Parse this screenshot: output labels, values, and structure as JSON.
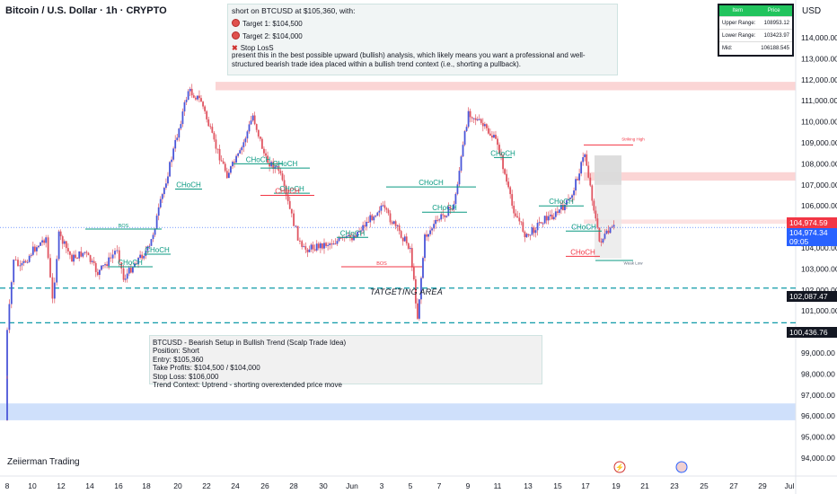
{
  "header": {
    "title": "Bitcoin / U.S. Dollar · 1h · CRYPTO",
    "currency": "USD"
  },
  "note_top": {
    "line1": "short on BTCUSD at $105,360, with:",
    "target1": "Target 1: $104,500",
    "target2": "Target 2: $104,000",
    "stoploss": "Stop LosS",
    "paragraph": " present this in the best possible upward (bullish) analysis, which likely means you want a professional and well-structured bearish trade idea placed within a bullish trend context (i.e., shorting a pullback)."
  },
  "note_bottom": {
    "lines": [
      "BTCUSD - Bearish Setup in Bullish Trend (Scalp Trade Idea)",
      "Position: Short",
      "Entry: $105,360",
      "Take Profits: $104,500 / $104,000",
      "Stop Loss: $106,000",
      "Trend Context: Uptrend - shorting overextended price move"
    ]
  },
  "range_table": {
    "header": [
      "Item",
      "Price"
    ],
    "rows": [
      {
        "label": "Upper Range:",
        "value": "108953.12"
      },
      {
        "label": "Lower Range:",
        "value": "103423.97"
      },
      {
        "label": "Mid:",
        "value": "106188.545"
      }
    ]
  },
  "price_labels": {
    "current": "104,974.59",
    "last": "104,974.34",
    "countdown": "09:05",
    "level1": "102,087.47",
    "level2": "100,436.76"
  },
  "watermark": "Zeiierman Trading",
  "targeting_area": "TATGETING AREA",
  "colors": {
    "up": "#26a69a",
    "down": "#ef5350",
    "candle_body": "#4a56d8",
    "wick": "#e05561",
    "teal": "#089981",
    "red_label": "#f23645",
    "dash": "#0f9aa8",
    "blue_zone": "#cfe0fb",
    "red_zone": "#fbd5d5"
  },
  "structure_labels": {
    "choch": "CHoCH",
    "bos": "BOS",
    "striking_high": "Striking High",
    "weak_low": "Weak Low"
  },
  "chart_data": {
    "type": "candlestick",
    "symbol": "BTCUSD",
    "interval": "1h",
    "ylim": [
      94000,
      115000
    ],
    "y_ticks": [
      "94,000.00",
      "95,000.00",
      "96,000.00",
      "97,000.00",
      "98,000.00",
      "99,000.00",
      "100,000.00",
      "101,000.00",
      "102,000.00",
      "103,000.00",
      "104,000.00",
      "105,000.00",
      "106,000.00",
      "107,000.00",
      "108,000.00",
      "109,000.00",
      "110,000.00",
      "111,000.00",
      "112,000.00",
      "113,000.00",
      "114,000.00"
    ],
    "x_ticks": [
      "8",
      "10",
      "12",
      "14",
      "16",
      "18",
      "20",
      "22",
      "24",
      "26",
      "28",
      "30",
      "Jun",
      "3",
      "5",
      "7",
      "9",
      "11",
      "13",
      "15",
      "17",
      "19",
      "21",
      "23",
      "25",
      "27",
      "29",
      "Jul"
    ],
    "close_path": [
      {
        "d": "8",
        "v": 95800
      },
      {
        "d": "8",
        "v": 100000
      },
      {
        "d": "8.5",
        "v": 103500
      },
      {
        "d": "9",
        "v": 103000
      },
      {
        "d": "10",
        "v": 103900
      },
      {
        "d": "11",
        "v": 104500
      },
      {
        "d": "11.5",
        "v": 101500
      },
      {
        "d": "12",
        "v": 104600
      },
      {
        "d": "13",
        "v": 103500
      },
      {
        "d": "14",
        "v": 103800
      },
      {
        "d": "15",
        "v": 102800
      },
      {
        "d": "16",
        "v": 103500
      },
      {
        "d": "16.5",
        "v": 104000
      },
      {
        "d": "17",
        "v": 102500
      },
      {
        "d": "18",
        "v": 103400
      },
      {
        "d": "19",
        "v": 104000
      },
      {
        "d": "20",
        "v": 106500
      },
      {
        "d": "21",
        "v": 109000
      },
      {
        "d": "22",
        "v": 111500
      },
      {
        "d": "23",
        "v": 111000
      },
      {
        "d": "24",
        "v": 109000
      },
      {
        "d": "25",
        "v": 107500
      },
      {
        "d": "26",
        "v": 108500
      },
      {
        "d": "27",
        "v": 110300
      },
      {
        "d": "28",
        "v": 108200
      },
      {
        "d": "29",
        "v": 107700
      },
      {
        "d": "30",
        "v": 105500
      },
      {
        "d": "31",
        "v": 103900
      },
      {
        "d": "Jun 1",
        "v": 104500
      },
      {
        "d": "Jun 2",
        "v": 105200
      },
      {
        "d": "Jun 3",
        "v": 106000
      },
      {
        "d": "Jun 4",
        "v": 105000
      },
      {
        "d": "Jun 5",
        "v": 104000
      },
      {
        "d": "Jun 5.5",
        "v": 100700
      },
      {
        "d": "Jun 6",
        "v": 104500
      },
      {
        "d": "Jun 7",
        "v": 105400
      },
      {
        "d": "Jun 8",
        "v": 106000
      },
      {
        "d": "Jun 9",
        "v": 110500
      },
      {
        "d": "Jun 10",
        "v": 109800
      },
      {
        "d": "Jun 11",
        "v": 109000
      },
      {
        "d": "Jun 12",
        "v": 106000
      },
      {
        "d": "Jun 13",
        "v": 104500
      },
      {
        "d": "Jun 14",
        "v": 105300
      },
      {
        "d": "Jun 15",
        "v": 105600
      },
      {
        "d": "Jun 16",
        "v": 106300
      },
      {
        "d": "Jun 17",
        "v": 108500
      },
      {
        "d": "Jun 18",
        "v": 104300
      },
      {
        "d": "Jun 19",
        "v": 104974
      }
    ],
    "levels": [
      {
        "price": 102087.47,
        "style": "dashed"
      },
      {
        "price": 100436.76,
        "style": "dashed"
      }
    ],
    "zones": [
      {
        "kind": "supply",
        "from": 111500,
        "to": 111900
      },
      {
        "kind": "supply",
        "from": 107200,
        "to": 107600
      },
      {
        "kind": "demand",
        "from": 95800,
        "to": 96600
      }
    ],
    "markers": [
      "CHoCH",
      "BOS",
      "CHoCH",
      "CHoCH",
      "CHoCH",
      "BOS",
      "CHoCH",
      "CHoCH"
    ]
  }
}
